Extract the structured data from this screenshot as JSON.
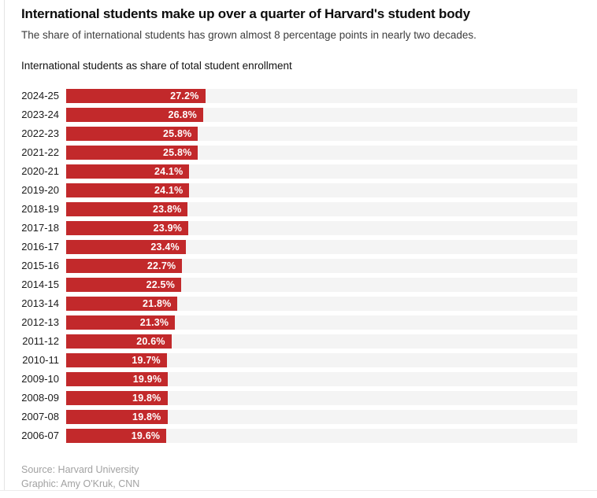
{
  "header": {
    "title": "International students make up over a quarter of Harvard's student body",
    "subtitle": "The share of international students has grown almost 8 percentage points in nearly two decades."
  },
  "chart": {
    "title": "International students as share of total student enrollment"
  },
  "chart_data": {
    "type": "bar",
    "orientation": "horizontal",
    "title": "International students as share of total student enrollment",
    "xlabel": "",
    "ylabel": "",
    "xlim": [
      0,
      100
    ],
    "grid": false,
    "legend": false,
    "bar_color": "#c2292b",
    "track_color": "#f4f4f4",
    "categories": [
      "2024-25",
      "2023-24",
      "2022-23",
      "2021-22",
      "2020-21",
      "2019-20",
      "2018-19",
      "2017-18",
      "2016-17",
      "2015-16",
      "2014-15",
      "2013-14",
      "2012-13",
      "2011-12",
      "2010-11",
      "2009-10",
      "2008-09",
      "2007-08",
      "2006-07"
    ],
    "values": [
      27.2,
      26.8,
      25.8,
      25.8,
      24.1,
      24.1,
      23.8,
      23.9,
      23.4,
      22.7,
      22.5,
      21.8,
      21.3,
      20.6,
      19.7,
      19.9,
      19.8,
      19.8,
      19.6
    ],
    "value_labels": [
      "27.2%",
      "26.8%",
      "25.8%",
      "25.8%",
      "24.1%",
      "24.1%",
      "23.8%",
      "23.9%",
      "23.4%",
      "22.7%",
      "22.5%",
      "21.8%",
      "21.3%",
      "20.6%",
      "19.7%",
      "19.9%",
      "19.8%",
      "19.8%",
      "19.6%"
    ]
  },
  "footer": {
    "source": "Source: Harvard University",
    "credit": "Graphic: Amy O'Kruk, CNN"
  }
}
